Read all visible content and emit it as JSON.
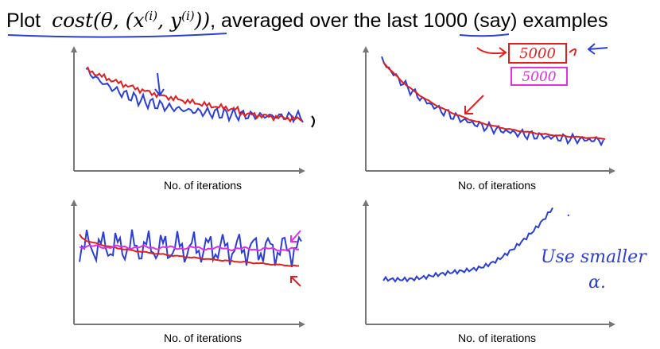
{
  "title": {
    "prefix": "Plot",
    "formula": [
      "cost(θ, (x",
      "(i)",
      ", y",
      "(i)",
      "))"
    ],
    "middle": ", averaged over the last ",
    "highlight": "1000",
    "suffix": " (say) examples"
  },
  "panels": [
    {
      "x_label": "No. of iterations"
    },
    {
      "x_label": "No. of iterations"
    },
    {
      "x_label": "No. of iterations"
    },
    {
      "x_label": "No. of iterations"
    }
  ],
  "annotations": {
    "red_box": "5000",
    "magenta_box": "5000",
    "note_line1": "Use smaller",
    "note_line2": "α."
  }
}
